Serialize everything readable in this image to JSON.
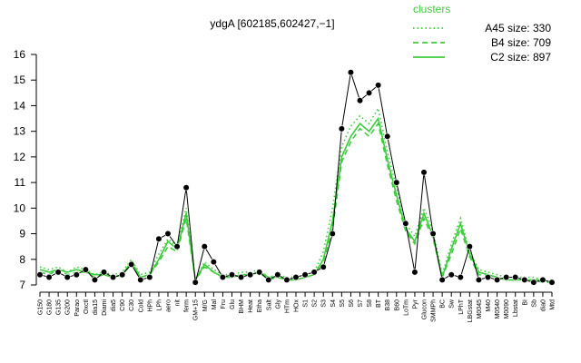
{
  "chart_data": {
    "type": "line",
    "title": "ydgA [602185,602427,−1]",
    "legend_title": "clusters",
    "legend_position": "top-right",
    "categories": [
      "G150",
      "G180",
      "G135",
      "G200",
      "Parao",
      "Oxctl",
      "dia15",
      "Diami",
      "dia5",
      "C90",
      "C30",
      "Cold",
      "HPh",
      "LPh",
      "aero",
      "nit",
      "ferm",
      "GM+15",
      "M/G",
      "Mal",
      "Fru",
      "Glu",
      "BHM",
      "Heat",
      "Etha",
      "Salt",
      "Gly",
      "HTm",
      "HOx",
      "S1",
      "S2",
      "S3",
      "S4",
      "S5",
      "S6",
      "S7",
      "S8",
      "BT",
      "B38",
      "B60",
      "LoTm",
      "Pyr",
      "Glucon",
      "SMMPh",
      "BC",
      "Sw",
      "LPhT",
      "LBGstat",
      "M0045",
      "M40",
      "M0540",
      "M0090",
      "Lbstat",
      "BI",
      "Sb",
      "dia0",
      "Mtd"
    ],
    "series": [
      {
        "name": "A45 size: 330",
        "color": "#3ccc3c",
        "dash": "dotted",
        "values": [
          7.7,
          7.6,
          7.7,
          7.5,
          7.7,
          7.6,
          7.4,
          7.5,
          7.4,
          7.5,
          8.0,
          7.4,
          7.5,
          8.2,
          8.8,
          8.5,
          10.0,
          7.2,
          7.9,
          7.6,
          7.4,
          7.4,
          7.5,
          7.5,
          7.6,
          7.3,
          7.4,
          7.3,
          7.3,
          7.4,
          7.5,
          8.3,
          10.0,
          12.4,
          13.2,
          13.6,
          13.3,
          13.9,
          12.2,
          10.8,
          9.4,
          8.9,
          10.0,
          9.1,
          7.4,
          8.6,
          9.6,
          8.3,
          7.6,
          7.5,
          7.4,
          7.3,
          7.3,
          7.3,
          7.3,
          7.2,
          7.1
        ]
      },
      {
        "name": "B4 size: 709",
        "color": "#3ccc3c",
        "dash": "dashed",
        "values": [
          7.5,
          7.4,
          7.6,
          7.4,
          7.5,
          7.5,
          7.3,
          7.4,
          7.3,
          7.4,
          7.8,
          7.3,
          7.4,
          7.9,
          8.5,
          8.3,
          9.6,
          7.2,
          7.7,
          7.5,
          7.3,
          7.3,
          7.4,
          7.4,
          7.5,
          7.2,
          7.3,
          7.2,
          7.2,
          7.3,
          7.4,
          7.9,
          9.2,
          11.8,
          12.6,
          13.1,
          12.8,
          13.3,
          11.7,
          10.3,
          9.1,
          8.6,
          9.6,
          8.8,
          7.3,
          8.2,
          9.2,
          8.1,
          7.4,
          7.4,
          7.3,
          7.2,
          7.2,
          7.2,
          7.2,
          7.1,
          7.1
        ]
      },
      {
        "name": "C2 size: 897",
        "color": "#3ccc3c",
        "dash": "solid",
        "values": [
          7.6,
          7.5,
          7.6,
          7.5,
          7.6,
          7.5,
          7.4,
          7.4,
          7.3,
          7.4,
          7.9,
          7.3,
          7.4,
          8.0,
          8.7,
          8.4,
          9.8,
          7.2,
          7.8,
          7.5,
          7.3,
          7.3,
          7.4,
          7.4,
          7.5,
          7.3,
          7.3,
          7.2,
          7.2,
          7.3,
          7.4,
          8.0,
          9.5,
          12.0,
          12.8,
          13.3,
          13.0,
          13.5,
          11.9,
          10.5,
          9.2,
          8.7,
          9.8,
          8.9,
          7.3,
          8.4,
          9.4,
          8.2,
          7.5,
          7.4,
          7.3,
          7.2,
          7.2,
          7.2,
          7.2,
          7.2,
          7.1
        ]
      },
      {
        "name": "ydgA",
        "color": "#000000",
        "dash": "solid",
        "values": [
          7.4,
          7.3,
          7.5,
          7.3,
          7.4,
          7.6,
          7.2,
          7.5,
          7.3,
          7.4,
          7.8,
          7.2,
          7.3,
          8.8,
          9.0,
          8.5,
          10.8,
          7.1,
          8.5,
          7.9,
          7.3,
          7.4,
          7.3,
          7.4,
          7.5,
          7.2,
          7.4,
          7.2,
          7.3,
          7.4,
          7.5,
          7.7,
          9.0,
          13.1,
          15.3,
          14.2,
          14.5,
          14.8,
          12.8,
          11.0,
          9.4,
          7.5,
          11.4,
          9.0,
          7.2,
          7.4,
          7.3,
          8.5,
          7.2,
          7.3,
          7.2,
          7.3,
          7.3,
          7.2,
          7.1,
          7.2,
          7.1
        ]
      }
    ],
    "ylim": [
      7,
      16
    ],
    "yticks": [
      7,
      8,
      9,
      10,
      11,
      12,
      13,
      14,
      15,
      16
    ]
  }
}
